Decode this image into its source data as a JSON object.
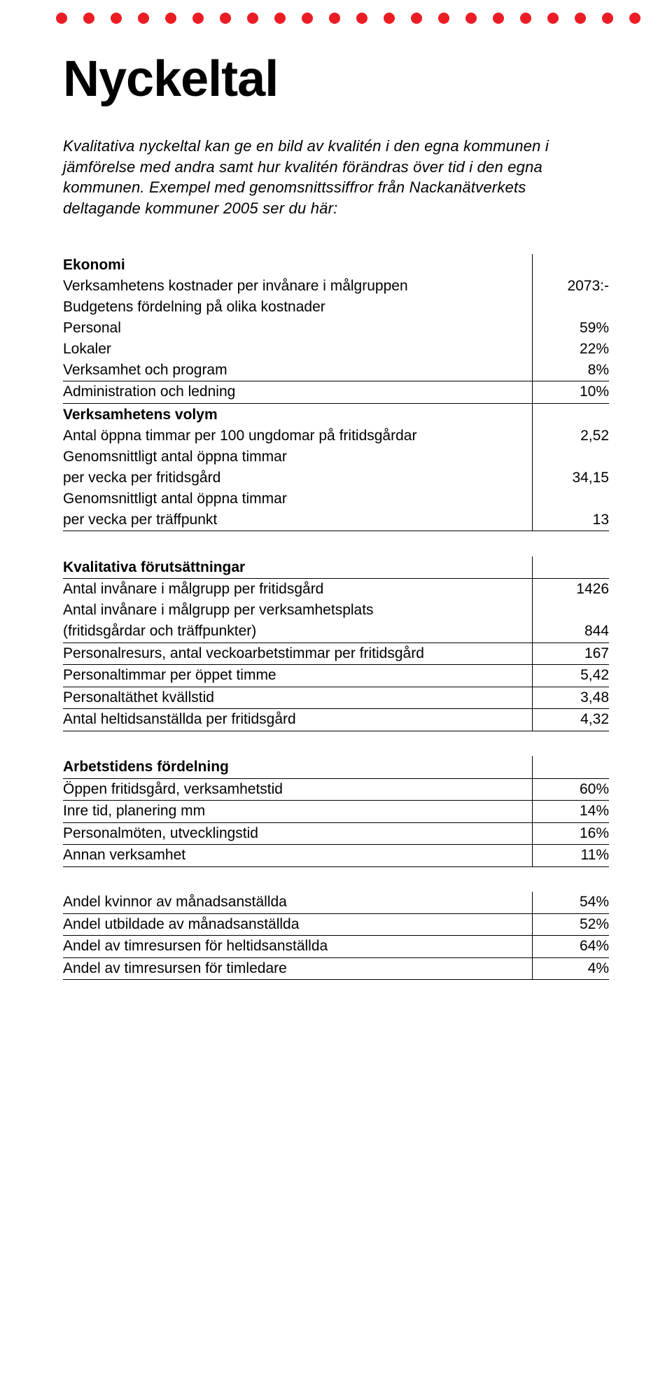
{
  "decor": {
    "dot_count": 22,
    "dot_color": "#ec1c24"
  },
  "title": "Nyckeltal",
  "intro": "Kvalitativa nyckeltal kan ge en bild av kvalitén i den egna kommunen i jämförelse med andra samt hur kvalitén förändras över tid i den egna kommunen. Exempel med genomsnittssiffror från Nackanätverkets deltagande kommuner 2005 ser du här:",
  "sections": {
    "ekonomi": {
      "header": "Ekonomi",
      "rows": [
        {
          "label": "Verksamhetens kostnader per invånare i målgruppen",
          "value": "2073:-"
        },
        {
          "label": "Budgetens fördelning på olika kostnader",
          "value": ""
        },
        {
          "label": "Personal",
          "value": "59%"
        },
        {
          "label": "Lokaler",
          "value": "22%"
        },
        {
          "label": "Verksamhet och program",
          "value": "8%"
        },
        {
          "label": "Administration och ledning",
          "value": "10%"
        }
      ]
    },
    "volym": {
      "header": "Verksamhetens volym",
      "rows": [
        {
          "label": "Antal öppna timmar per 100 ungdomar på fritidsgårdar",
          "value": "2,52"
        },
        {
          "label": "Genomsnittligt antal öppna timmar",
          "value": ""
        },
        {
          "label": "per vecka per fritidsgård",
          "value": "34,15"
        },
        {
          "label": "Genomsnittligt antal öppna timmar",
          "value": ""
        },
        {
          "label": "per vecka per träffpunkt",
          "value": "13"
        }
      ]
    },
    "kvalitativa": {
      "header": "Kvalitativa förutsättningar",
      "rows": [
        {
          "label": "Antal invånare i målgrupp per fritidsgård",
          "value": "1426"
        },
        {
          "label": "Antal invånare i målgrupp per verksamhetsplats",
          "value": ""
        },
        {
          "label": "(fritidsgårdar och träffpunkter)",
          "value": "844"
        },
        {
          "label": "Personalresurs, antal veckoarbetstimmar per fritidsgård",
          "value": "167"
        },
        {
          "label": "Personaltimmar per öppet timme",
          "value": "5,42"
        },
        {
          "label": "Personaltäthet kvällstid",
          "value": "3,48"
        },
        {
          "label": "Antal heltidsanställda per fritidsgård",
          "value": "4,32"
        }
      ]
    },
    "arbetstid": {
      "header": "Arbetstidens fördelning",
      "rows": [
        {
          "label": "Öppen fritidsgård, verksamhetstid",
          "value": "60%"
        },
        {
          "label": "Inre tid, planering mm",
          "value": "14%"
        },
        {
          "label": "Personalmöten, utvecklingstid",
          "value": "16%"
        },
        {
          "label": "Annan verksamhet",
          "value": "11%"
        }
      ]
    },
    "andel": {
      "rows": [
        {
          "label": "Andel kvinnor av månadsanställda",
          "value": "54%"
        },
        {
          "label": "Andel utbildade av månadsanställda",
          "value": "52%"
        },
        {
          "label": "Andel av timresursen för heltidsanställda",
          "value": "64%"
        },
        {
          "label": "Andel av timresursen för timledare",
          "value": "4%"
        }
      ]
    }
  }
}
